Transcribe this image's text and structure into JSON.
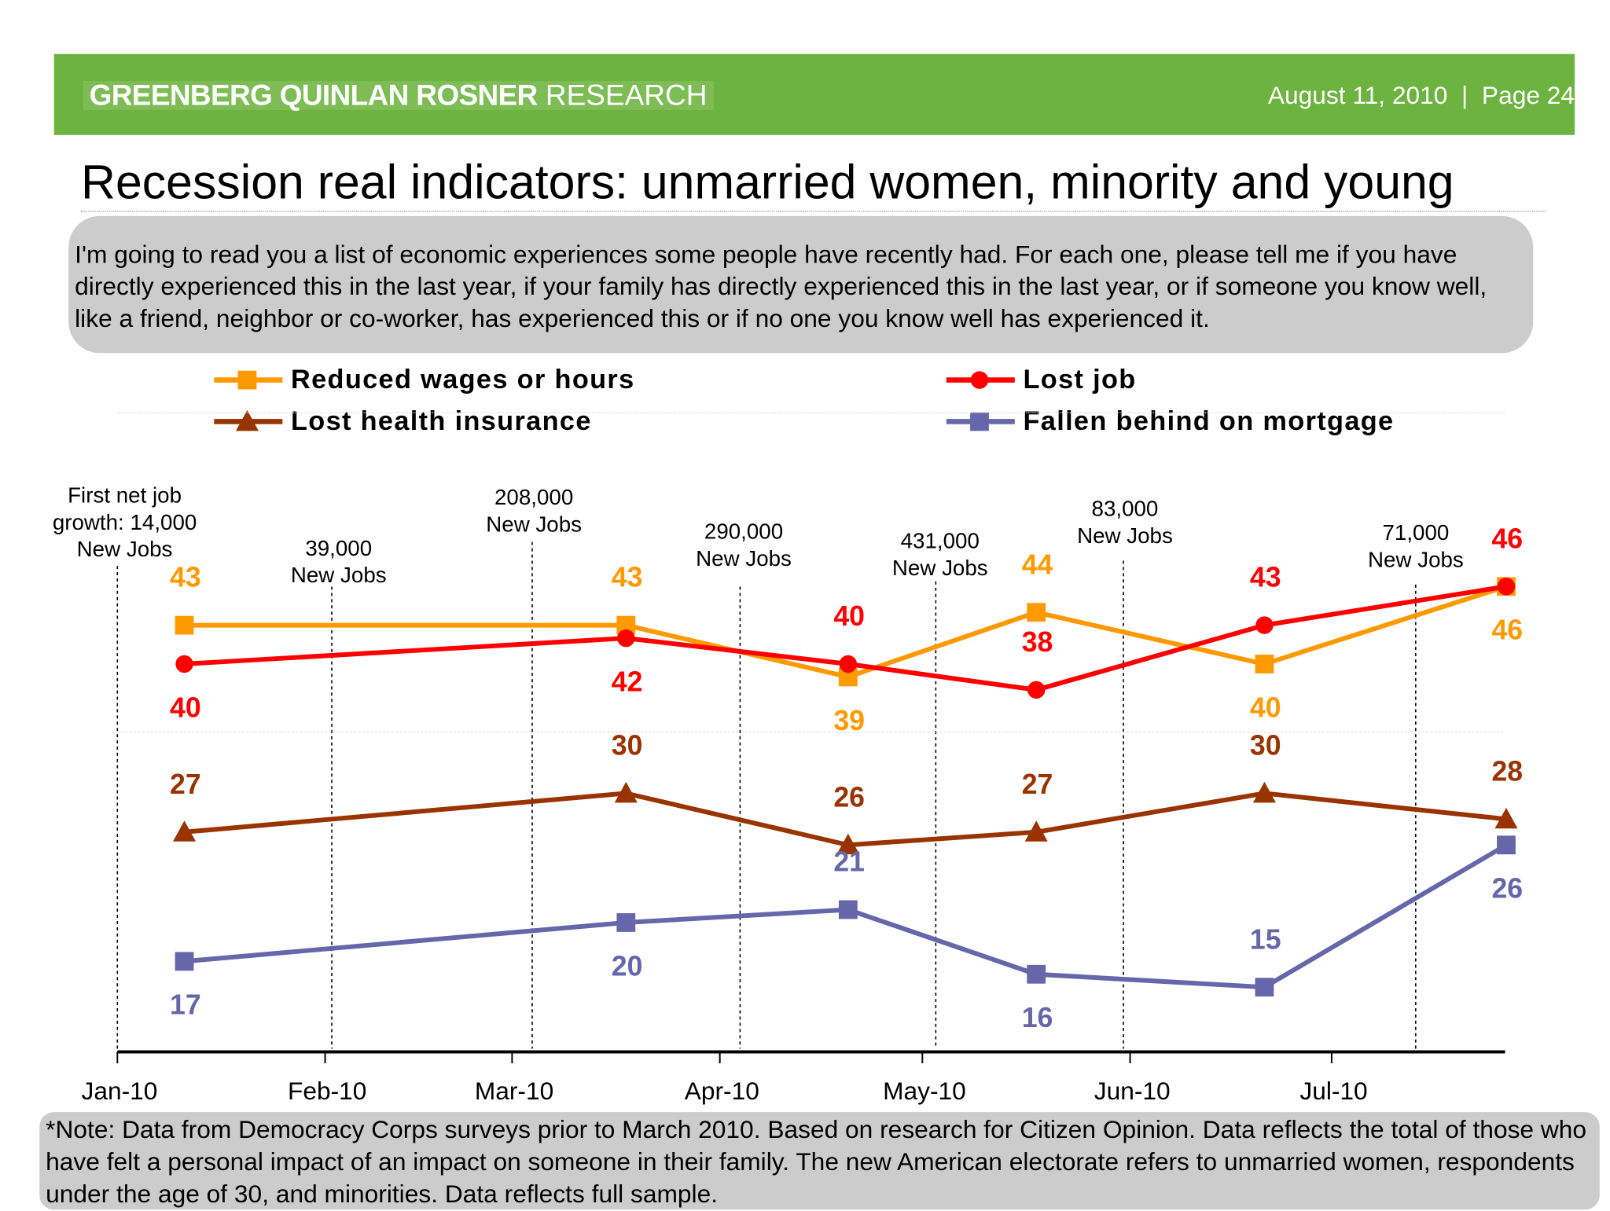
{
  "header": {
    "logo_bold": "GREENBERG QUINLAN ROSNER",
    "logo_light": "RESEARCH",
    "date_page": "August 11, 2010  |  Page 24",
    "background_color": "#6db33f"
  },
  "title": "Recession real indicators: unmarried women, minority and young",
  "question": "I'm going to read you a list of economic experiences some people have recently had. For each one, please tell me if you have directly experienced this in the last year, if your family has directly experienced this in the last year, or if someone you know well, like a friend, neighbor or co-worker, has experienced this or if no one you know well has experienced it.",
  "note": "*Note: Data from Democracy Corps surveys prior to March 2010. Based on research for Citizen Opinion. Data reflects the total of those who have felt a personal impact of an impact on someone in their family. The new American electorate refers to unmarried women, respondents under the age of 30, and minorities. Data reflects full sample.",
  "chart_data": {
    "type": "line",
    "x": [
      "2010-01-11",
      "2010-03-18",
      "2010-04-20",
      "2010-05-18",
      "2010-06-21",
      "2010-07-28"
    ],
    "x_tick_labels": [
      "Jan-10",
      "Feb-10",
      "Mar-10",
      "Apr-10",
      "May-10",
      "Jun-10",
      "Jul-10"
    ],
    "x_ticks": [
      "2010-01-01",
      "2010-02-01",
      "2010-03-01",
      "2010-04-01",
      "2010-05-01",
      "2010-06-01",
      "2010-07-01"
    ],
    "ylim": [
      10,
      52
    ],
    "y_axis_visible": false,
    "grid": false,
    "legend_placement": "top",
    "series": [
      {
        "name": "Reduced wages or hours",
        "color": "#ff9900",
        "marker": "square",
        "values": [
          43,
          43,
          39,
          44,
          40,
          46
        ],
        "label_pos": [
          "above",
          "above",
          "below",
          "above",
          "below",
          "below"
        ]
      },
      {
        "name": "Lost job",
        "color": "#ff0000",
        "marker": "circle",
        "values": [
          40,
          42,
          40,
          38,
          43,
          46
        ],
        "label_pos": [
          "below",
          "below",
          "above",
          "above",
          "above",
          "above"
        ]
      },
      {
        "name": "Lost health insurance",
        "color": "#993300",
        "marker": "triangle",
        "values": [
          27,
          30,
          26,
          27,
          30,
          28
        ],
        "label_pos": [
          "above",
          "above",
          "above",
          "above",
          "above",
          "above"
        ]
      },
      {
        "name": "Fallen behind on mortgage",
        "color": "#6666aa",
        "marker": "square",
        "values": [
          17,
          20,
          21,
          16,
          15,
          26
        ],
        "label_pos": [
          "below",
          "below",
          "above",
          "below",
          "above",
          "below"
        ]
      }
    ],
    "annotations": [
      {
        "date": "2010-01-01",
        "lines": [
          "First net job",
          "growth: 14,000",
          "New Jobs"
        ]
      },
      {
        "date": "2010-02-02",
        "lines": [
          "39,000",
          "New Jobs"
        ]
      },
      {
        "date": "2010-03-04",
        "lines": [
          "208,000",
          "New Jobs"
        ]
      },
      {
        "date": "2010-04-04",
        "lines": [
          "290,000",
          "New Jobs"
        ]
      },
      {
        "date": "2010-05-03",
        "lines": [
          "431,000",
          "New Jobs"
        ]
      },
      {
        "date": "2010-05-31",
        "lines": [
          "83,000",
          "New Jobs"
        ]
      },
      {
        "date": "2010-07-14",
        "lines": [
          "71,000",
          "New Jobs"
        ]
      }
    ]
  }
}
